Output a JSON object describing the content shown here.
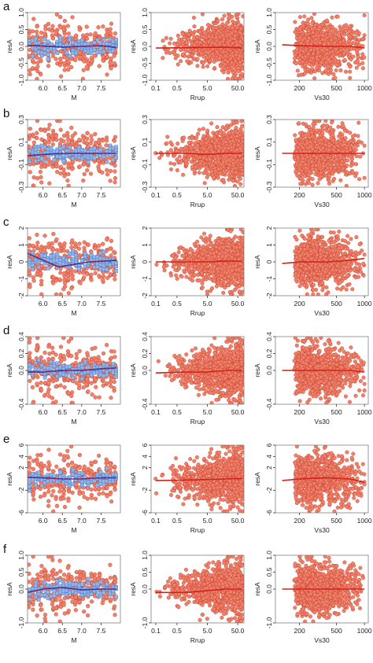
{
  "colors": {
    "point_fill": "#f0826a",
    "point_stroke": "#c0392b",
    "binned_fill": "#8fb4e8",
    "binned_stroke": "#4a78c2",
    "trend_red": "#d2221b",
    "trend_blue": "#1c2fb8"
  },
  "chart_data": [
    {
      "row": "a",
      "ylabel": "resA",
      "ylim": [
        -1.0,
        1.0
      ],
      "yticks": [
        -1.0,
        -0.5,
        0.0,
        0.5,
        1.0
      ],
      "ytick_labels": [
        "-1.0",
        "-0.5",
        "0.0",
        "0.5",
        "1.0"
      ],
      "panels": [
        {
          "type": "scatter",
          "xlabel": "M",
          "xscale": "linear",
          "xlim": [
            5.6,
            8.0
          ],
          "xticks": [
            6.0,
            6.5,
            7.0,
            7.5
          ],
          "xtick_labels": [
            "6.0",
            "6.5",
            "7.0",
            "7.5"
          ],
          "binned": true,
          "trend": {
            "x": [
              5.6,
              6.0,
              6.5,
              7.0,
              7.5,
              7.9
            ],
            "y": [
              0.03,
              0.01,
              -0.02,
              0.0,
              0.02,
              -0.03
            ]
          }
        },
        {
          "type": "scatter",
          "xlabel": "Rrup",
          "xscale": "log",
          "xlim": [
            0.07,
            80
          ],
          "xticks": [
            0.1,
            0.5,
            5.0,
            50.0
          ],
          "xtick_labels": [
            "0.1",
            "0.5",
            "5.0",
            "50.0"
          ],
          "binned": false,
          "trend": {
            "x": [
              0.1,
              1.0,
              5.0,
              20.0,
              70.0
            ],
            "y": [
              -0.05,
              -0.04,
              -0.03,
              -0.02,
              -0.05
            ]
          }
        },
        {
          "type": "scatter",
          "xlabel": "Vs30",
          "xscale": "log",
          "xlim": [
            110,
            1100
          ],
          "xticks": [
            200,
            500,
            1000
          ],
          "xtick_labels": [
            "200",
            "500",
            "1000"
          ],
          "binned": false,
          "trend": {
            "x": [
              130,
              200,
              400,
              700,
              1000
            ],
            "y": [
              0.05,
              0.02,
              0.0,
              0.0,
              -0.05
            ]
          }
        }
      ]
    },
    {
      "row": "b",
      "ylabel": "resA",
      "ylim": [
        -0.3,
        0.3
      ],
      "yticks": [
        -0.3,
        -0.1,
        0.1,
        0.3
      ],
      "ytick_labels": [
        "-0.3",
        "-0.1",
        "0.1",
        "0.3"
      ],
      "panels": [
        {
          "type": "scatter",
          "xlabel": "M",
          "xscale": "linear",
          "xlim": [
            5.6,
            8.0
          ],
          "xticks": [
            6.0,
            6.5,
            7.0,
            7.5
          ],
          "xtick_labels": [
            "6.0",
            "6.5",
            "7.0",
            "7.5"
          ],
          "binned": true,
          "trend": {
            "x": [
              5.6,
              6.0,
              6.5,
              7.0,
              7.5,
              7.9
            ],
            "y": [
              -0.02,
              -0.01,
              0.0,
              0.0,
              0.0,
              0.0
            ]
          }
        },
        {
          "type": "scatter",
          "xlabel": "Rrup",
          "xscale": "log",
          "xlim": [
            0.07,
            80
          ],
          "xticks": [
            0.1,
            0.5,
            5.0,
            50.0
          ],
          "xtick_labels": [
            "0.1",
            "0.5",
            "5.0",
            "50.0"
          ],
          "binned": false,
          "trend": {
            "x": [
              0.1,
              1.0,
              5.0,
              20.0,
              70.0
            ],
            "y": [
              0.0,
              0.0,
              -0.01,
              0.0,
              0.0
            ]
          }
        },
        {
          "type": "scatter",
          "xlabel": "Vs30",
          "xscale": "log",
          "xlim": [
            110,
            1100
          ],
          "xticks": [
            200,
            500,
            1000
          ],
          "xtick_labels": [
            "200",
            "500",
            "1000"
          ],
          "binned": false,
          "trend": {
            "x": [
              130,
              200,
              400,
              700,
              1000
            ],
            "y": [
              0.0,
              0.0,
              0.0,
              0.0,
              0.0
            ]
          }
        }
      ]
    },
    {
      "row": "c",
      "ylabel": "resA",
      "ylim": [
        -2.0,
        2.0
      ],
      "yticks": [
        -2,
        -1,
        0,
        1,
        2
      ],
      "ytick_labels": [
        "-2",
        "-1",
        "0",
        "1",
        "2"
      ],
      "panels": [
        {
          "type": "scatter",
          "xlabel": "M",
          "xscale": "linear",
          "xlim": [
            5.6,
            8.0
          ],
          "xticks": [
            6.0,
            6.5,
            7.0,
            7.5
          ],
          "xtick_labels": [
            "6.0",
            "6.5",
            "7.0",
            "7.5"
          ],
          "binned": true,
          "trend": {
            "x": [
              5.6,
              6.0,
              6.4,
              6.8,
              7.2,
              7.6,
              7.9
            ],
            "y": [
              0.5,
              0.1,
              -0.3,
              -0.15,
              0.0,
              0.05,
              0.1
            ]
          }
        },
        {
          "type": "scatter",
          "xlabel": "Rrup",
          "xscale": "log",
          "xlim": [
            0.07,
            80
          ],
          "xticks": [
            0.1,
            0.5,
            5.0,
            50.0
          ],
          "xtick_labels": [
            "0.1",
            "0.5",
            "5.0",
            "50.0"
          ],
          "binned": false,
          "trend": {
            "x": [
              0.1,
              1.0,
              5.0,
              20.0,
              70.0
            ],
            "y": [
              0.0,
              0.0,
              0.0,
              0.05,
              0.05
            ]
          }
        },
        {
          "type": "scatter",
          "xlabel": "Vs30",
          "xscale": "log",
          "xlim": [
            110,
            1100
          ],
          "xticks": [
            200,
            500,
            1000
          ],
          "xtick_labels": [
            "200",
            "500",
            "1000"
          ],
          "binned": false,
          "trend": {
            "x": [
              130,
              200,
              400,
              700,
              1000
            ],
            "y": [
              -0.1,
              0.0,
              0.0,
              0.1,
              0.2
            ]
          }
        }
      ]
    },
    {
      "row": "d",
      "ylabel": "resA",
      "ylim": [
        -0.4,
        0.4
      ],
      "yticks": [
        -0.4,
        0.0,
        0.2,
        0.4
      ],
      "ytick_labels": [
        "-0.4",
        "0.0",
        "0.2",
        "0.4"
      ],
      "panels": [
        {
          "type": "scatter",
          "xlabel": "M",
          "xscale": "linear",
          "xlim": [
            5.6,
            8.0
          ],
          "xticks": [
            6.0,
            6.5,
            7.0,
            7.5
          ],
          "xtick_labels": [
            "6.0",
            "6.5",
            "7.0",
            "7.5"
          ],
          "binned": true,
          "trend": {
            "x": [
              5.6,
              6.0,
              6.5,
              7.0,
              7.5,
              7.9
            ],
            "y": [
              -0.02,
              -0.02,
              0.0,
              0.0,
              0.02,
              0.03
            ]
          }
        },
        {
          "type": "scatter",
          "xlabel": "Rrup",
          "xscale": "log",
          "xlim": [
            0.07,
            80
          ],
          "xticks": [
            0.1,
            0.5,
            5.0,
            50.0
          ],
          "xtick_labels": [
            "0.1",
            "0.5",
            "5.0",
            "50.0"
          ],
          "binned": false,
          "trend": {
            "x": [
              0.1,
              1.0,
              5.0,
              20.0,
              70.0
            ],
            "y": [
              -0.03,
              -0.02,
              -0.02,
              0.0,
              0.0
            ]
          }
        },
        {
          "type": "scatter",
          "xlabel": "Vs30",
          "xscale": "log",
          "xlim": [
            110,
            1100
          ],
          "xticks": [
            200,
            500,
            1000
          ],
          "xtick_labels": [
            "200",
            "500",
            "1000"
          ],
          "binned": false,
          "trend": {
            "x": [
              130,
              200,
              400,
              700,
              1000
            ],
            "y": [
              0.0,
              0.0,
              0.0,
              0.0,
              -0.02
            ]
          }
        }
      ]
    },
    {
      "row": "e",
      "ylabel": "resA",
      "ylim": [
        -6,
        6
      ],
      "yticks": [
        -6,
        -2,
        2,
        4,
        6
      ],
      "ytick_labels": [
        "-6",
        "-2",
        "2",
        "4",
        "6"
      ],
      "panels": [
        {
          "type": "scatter",
          "xlabel": "M",
          "xscale": "linear",
          "xlim": [
            5.6,
            8.0
          ],
          "xticks": [
            6.0,
            6.5,
            7.0,
            7.5
          ],
          "xtick_labels": [
            "6.0",
            "6.5",
            "7.0",
            "7.5"
          ],
          "binned": true,
          "trend": {
            "x": [
              5.6,
              6.0,
              6.5,
              7.0,
              7.5,
              7.9
            ],
            "y": [
              0.3,
              0.2,
              0.0,
              0.0,
              0.2,
              0.2
            ]
          }
        },
        {
          "type": "scatter",
          "xlabel": "Rrup",
          "xscale": "log",
          "xlim": [
            0.07,
            80
          ],
          "xticks": [
            0.1,
            0.5,
            5.0,
            50.0
          ],
          "xtick_labels": [
            "0.1",
            "0.5",
            "5.0",
            "50.0"
          ],
          "binned": false,
          "trend": {
            "x": [
              0.1,
              1.0,
              5.0,
              20.0,
              70.0
            ],
            "y": [
              -0.3,
              -0.2,
              -0.1,
              0.0,
              0.1
            ]
          }
        },
        {
          "type": "scatter",
          "xlabel": "Vs30",
          "xscale": "log",
          "xlim": [
            110,
            1100
          ],
          "xticks": [
            200,
            500,
            1000
          ],
          "xtick_labels": [
            "200",
            "500",
            "1000"
          ],
          "binned": false,
          "trend": {
            "x": [
              130,
              200,
              400,
              700,
              1000
            ],
            "y": [
              -0.3,
              0.0,
              0.2,
              0.0,
              -0.6
            ]
          }
        }
      ]
    },
    {
      "row": "f",
      "ylabel": "resA",
      "ylim": [
        -1.0,
        1.0
      ],
      "yticks": [
        -1.0,
        0.0,
        0.5,
        1.0
      ],
      "ytick_labels": [
        "-1.0",
        "0.0",
        "0.5",
        "1.0"
      ],
      "panels": [
        {
          "type": "scatter",
          "xlabel": "M",
          "xscale": "linear",
          "xlim": [
            5.6,
            8.0
          ],
          "xticks": [
            6.0,
            6.5,
            7.0,
            7.5
          ],
          "xtick_labels": [
            "6.0",
            "6.5",
            "7.0",
            "7.5"
          ],
          "binned": true,
          "trend": {
            "x": [
              5.6,
              6.0,
              6.5,
              7.0,
              7.5,
              7.9
            ],
            "y": [
              -0.1,
              0.0,
              0.05,
              -0.02,
              0.0,
              0.0
            ]
          }
        },
        {
          "type": "scatter",
          "xlabel": "Rrup",
          "xscale": "log",
          "xlim": [
            0.07,
            80
          ],
          "xticks": [
            0.1,
            0.5,
            5.0,
            50.0
          ],
          "xtick_labels": [
            "0.1",
            "0.5",
            "5.0",
            "50.0"
          ],
          "binned": false,
          "trend": {
            "x": [
              0.1,
              1.0,
              5.0,
              20.0,
              70.0
            ],
            "y": [
              -0.1,
              -0.1,
              -0.05,
              0.0,
              0.0
            ]
          }
        },
        {
          "type": "scatter",
          "xlabel": "Vs30",
          "xscale": "log",
          "xlim": [
            110,
            1100
          ],
          "xticks": [
            200,
            500,
            1000
          ],
          "xtick_labels": [
            "200",
            "500",
            "1000"
          ],
          "binned": false,
          "trend": {
            "x": [
              130,
              200,
              400,
              700,
              1000
            ],
            "y": [
              0.0,
              0.0,
              0.0,
              0.0,
              0.0
            ]
          }
        }
      ]
    }
  ]
}
